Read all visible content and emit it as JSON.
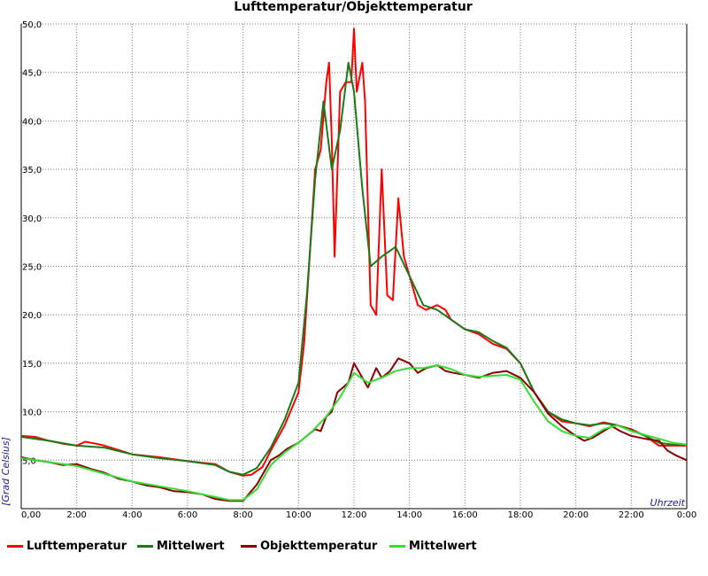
{
  "chart_data": {
    "type": "line",
    "title": "Lufttemperatur/Objekttemperatur",
    "xlabel": "Uhrzeit",
    "ylabel": "[Grad Celsius]",
    "xlim": [
      0,
      24
    ],
    "ylim": [
      0,
      50
    ],
    "grid": true,
    "legend_position": "bottom",
    "x_tick_labels": [
      "0,00",
      "2:00",
      "4:00",
      "6:00",
      "8:00",
      "10:00",
      "12:00",
      "14:00",
      "16:00",
      "18:00",
      "20:00",
      "22:00",
      "0:00"
    ],
    "y_tick_labels": [
      "5,0",
      "10,0",
      "15,0",
      "20,0",
      "25,0",
      "30,0",
      "35,0",
      "40,0",
      "45,0",
      "50,0"
    ],
    "x_unit": "hours",
    "series": [
      {
        "name": "Lufttemperatur",
        "color": "#ff0000",
        "x": [
          0,
          0.5,
          1,
          1.5,
          2,
          2.3,
          2.7,
          3,
          4,
          5,
          6,
          7,
          7.5,
          8,
          8.3,
          8.7,
          9,
          9.5,
          10,
          10.2,
          10.4,
          10.6,
          10.8,
          11,
          11.1,
          11.2,
          11.3,
          11.5,
          11.7,
          11.9,
          12,
          12.1,
          12.3,
          12.4,
          12.6,
          12.8,
          13,
          13.2,
          13.4,
          13.6,
          13.8,
          14,
          14.3,
          14.6,
          15,
          15.3,
          15.5,
          16,
          16.5,
          17,
          17.5,
          18,
          18.5,
          19,
          19.5,
          20,
          20.5,
          21,
          21.5,
          22,
          22.5,
          23,
          23.5,
          24
        ],
        "y": [
          7.5,
          7.4,
          7.0,
          6.7,
          6.5,
          6.9,
          6.7,
          6.5,
          5.6,
          5.3,
          4.9,
          4.6,
          3.8,
          3.4,
          3.5,
          4.3,
          6.0,
          8.6,
          12.0,
          17.0,
          26.0,
          35.0,
          37.0,
          44.0,
          46.0,
          38.0,
          26.0,
          43.0,
          44.0,
          44.0,
          49.5,
          43.0,
          46.0,
          42.0,
          21.0,
          20.0,
          35.0,
          22.0,
          21.5,
          32.0,
          26.0,
          24.0,
          21.0,
          20.5,
          21.0,
          20.5,
          19.5,
          18.5,
          18.0,
          17.0,
          16.5,
          15.0,
          12.0,
          10.0,
          9.0,
          8.8,
          8.5,
          8.9,
          8.6,
          8.2,
          7.5,
          6.5,
          6.5,
          6.5
        ]
      },
      {
        "name": "Mittelwert",
        "color": "#1a7a1a",
        "x": [
          0,
          1,
          2,
          3,
          4,
          5,
          6,
          7,
          7.5,
          8,
          8.5,
          9,
          9.5,
          10,
          10.3,
          10.6,
          10.9,
          11.2,
          11.5,
          11.8,
          12,
          12.3,
          12.6,
          13,
          13.5,
          14,
          14.5,
          15,
          15.5,
          16,
          16.5,
          17,
          17.5,
          18,
          18.5,
          19,
          19.5,
          20,
          20.5,
          21,
          21.5,
          22,
          22.5,
          23,
          23.5,
          24
        ],
        "y": [
          7.4,
          7.0,
          6.5,
          6.3,
          5.6,
          5.2,
          4.9,
          4.5,
          3.8,
          3.5,
          4.2,
          6.3,
          9.2,
          13.0,
          22.0,
          34.0,
          42.0,
          35.0,
          39.0,
          46.0,
          43.0,
          33.0,
          25.0,
          26.0,
          27.0,
          24.0,
          21.0,
          20.5,
          19.5,
          18.5,
          18.2,
          17.3,
          16.6,
          15.0,
          12.0,
          10.0,
          9.2,
          8.8,
          8.6,
          8.8,
          8.6,
          8.1,
          7.5,
          6.8,
          6.6,
          6.6
        ]
      },
      {
        "name": "Objekttemperatur",
        "color": "#8b0000",
        "x": [
          0,
          0.5,
          1,
          1.5,
          2,
          2.5,
          3,
          3.5,
          4,
          4.5,
          5,
          5.5,
          6,
          6.5,
          7,
          7.5,
          8,
          8.5,
          9,
          9.3,
          9.6,
          10,
          10.3,
          10.6,
          10.8,
          11,
          11.2,
          11.4,
          11.6,
          11.8,
          12,
          12.2,
          12.5,
          12.8,
          13,
          13.3,
          13.6,
          14,
          14.3,
          14.6,
          15,
          15.3,
          15.6,
          16,
          16.5,
          17,
          17.5,
          18,
          18.5,
          19,
          19.5,
          20,
          20.3,
          20.6,
          21,
          21.3,
          21.6,
          22,
          22.5,
          23,
          23.3,
          23.6,
          24
        ],
        "y": [
          5.3,
          5.0,
          4.8,
          4.5,
          4.6,
          4.1,
          3.7,
          3.1,
          2.8,
          2.4,
          2.2,
          1.8,
          1.7,
          1.5,
          1.0,
          0.8,
          0.8,
          2.5,
          5.0,
          5.5,
          6.2,
          6.8,
          7.5,
          8.2,
          8.0,
          9.5,
          10.0,
          12.0,
          12.5,
          13.0,
          15.0,
          14.0,
          12.5,
          14.5,
          13.5,
          14.2,
          15.5,
          15.0,
          14.0,
          14.5,
          14.8,
          14.2,
          14.0,
          13.8,
          13.5,
          14.0,
          14.2,
          13.5,
          12.0,
          9.8,
          8.5,
          7.5,
          7.0,
          7.3,
          8.0,
          8.5,
          8.0,
          7.5,
          7.2,
          7.0,
          6.0,
          5.5,
          5.0
        ]
      },
      {
        "name": "Mittelwert",
        "color": "#33dd33",
        "x": [
          0,
          1,
          2,
          3,
          4,
          5,
          6,
          7,
          7.5,
          8,
          8.5,
          9,
          9.5,
          10,
          10.5,
          11,
          11.5,
          12,
          12.5,
          13,
          13.5,
          14,
          14.5,
          15,
          15.5,
          16,
          16.5,
          17,
          17.5,
          18,
          18.5,
          19,
          19.5,
          20,
          20.5,
          21,
          21.5,
          22,
          22.5,
          23,
          23.5,
          24
        ],
        "y": [
          5.2,
          4.8,
          4.4,
          3.6,
          2.8,
          2.3,
          1.8,
          1.2,
          0.9,
          0.9,
          2.0,
          4.5,
          5.8,
          6.8,
          8.0,
          9.5,
          11.5,
          14.0,
          13.0,
          13.5,
          14.2,
          14.5,
          14.5,
          14.8,
          14.4,
          13.8,
          13.6,
          13.7,
          13.8,
          13.3,
          11.0,
          9.0,
          8.0,
          7.5,
          7.3,
          8.2,
          8.6,
          8.0,
          7.6,
          7.2,
          6.8,
          6.6
        ]
      }
    ]
  }
}
